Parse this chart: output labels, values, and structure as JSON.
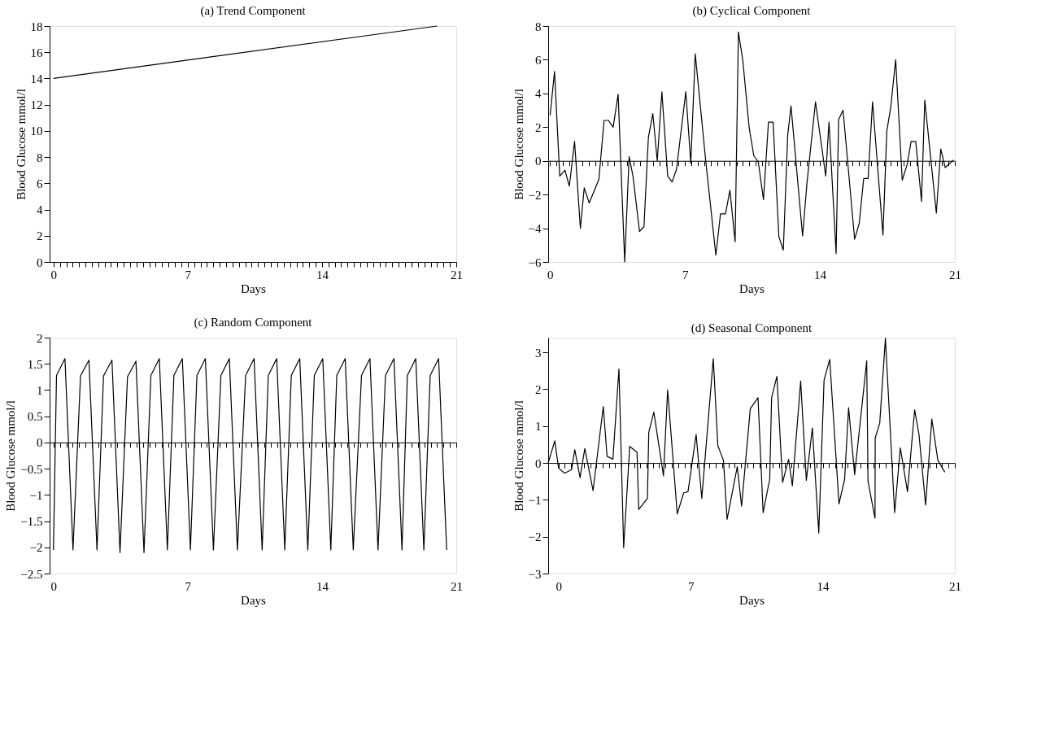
{
  "chart_data": [
    {
      "type": "line",
      "title": "(a) Trend Component",
      "xlabel": "Days",
      "ylabel": "Blood Glucose mmol/l",
      "xlim": [
        -0.2,
        21
      ],
      "ylim": [
        0,
        18
      ],
      "yticks": [
        0,
        2,
        4,
        6,
        8,
        10,
        12,
        14,
        16,
        18
      ],
      "xticks": [
        0,
        {
          "value": 0.33,
          "label": null
        },
        {
          "value": 0.67,
          "label": null
        },
        {
          "value": 1,
          "label": null
        },
        {
          "value": 1.33,
          "label": null
        },
        {
          "value": 1.67,
          "label": null
        },
        {
          "value": 2,
          "label": null
        },
        {
          "value": 2.33,
          "label": null
        },
        {
          "value": 2.67,
          "label": null
        },
        {
          "value": 3,
          "label": null
        },
        {
          "value": 3.33,
          "label": null
        },
        {
          "value": 3.67,
          "label": null
        },
        {
          "value": 4,
          "label": null
        },
        {
          "value": 4.33,
          "label": null
        },
        {
          "value": 4.67,
          "label": null
        },
        {
          "value": 5,
          "label": null
        },
        {
          "value": 5.33,
          "label": null
        },
        {
          "value": 5.67,
          "label": null
        },
        {
          "value": 6,
          "label": null
        },
        {
          "value": 6.33,
          "label": null
        },
        {
          "value": 6.67,
          "label": null
        },
        7,
        {
          "value": 7.33,
          "label": null
        },
        {
          "value": 7.67,
          "label": null
        },
        {
          "value": 8,
          "label": null
        },
        {
          "value": 8.33,
          "label": null
        },
        {
          "value": 8.67,
          "label": null
        },
        {
          "value": 9,
          "label": null
        },
        {
          "value": 9.33,
          "label": null
        },
        {
          "value": 9.67,
          "label": null
        },
        {
          "value": 10,
          "label": null
        },
        {
          "value": 10.33,
          "label": null
        },
        {
          "value": 10.67,
          "label": null
        },
        {
          "value": 11,
          "label": null
        },
        {
          "value": 11.33,
          "label": null
        },
        {
          "value": 11.67,
          "label": null
        },
        {
          "value": 12,
          "label": null
        },
        {
          "value": 12.33,
          "label": null
        },
        {
          "value": 12.67,
          "label": null
        },
        {
          "value": 13,
          "label": null
        },
        {
          "value": 13.33,
          "label": null
        },
        {
          "value": 13.67,
          "label": null
        },
        14,
        {
          "value": 14.33,
          "label": null
        },
        {
          "value": 14.67,
          "label": null
        },
        {
          "value": 15,
          "label": null
        },
        {
          "value": 15.33,
          "label": null
        },
        {
          "value": 15.67,
          "label": null
        },
        {
          "value": 16,
          "label": null
        },
        {
          "value": 16.33,
          "label": null
        },
        {
          "value": 16.67,
          "label": null
        },
        {
          "value": 17,
          "label": null
        },
        {
          "value": 17.33,
          "label": null
        },
        {
          "value": 17.67,
          "label": null
        },
        {
          "value": 18,
          "label": null
        },
        {
          "value": 18.33,
          "label": null
        },
        {
          "value": 18.67,
          "label": null
        },
        {
          "value": 19,
          "label": null
        },
        {
          "value": 19.33,
          "label": null
        },
        {
          "value": 19.67,
          "label": null
        },
        {
          "value": 20,
          "label": null
        },
        {
          "value": 20.33,
          "label": null
        },
        {
          "value": 20.67,
          "label": null
        },
        21
      ],
      "series": [
        {
          "color": "#000000",
          "x": [
            0,
            20
          ],
          "values": [
            14,
            18
          ]
        }
      ]
    },
    {
      "type": "line",
      "title": "(b) Cyclical Component",
      "xlabel": "Days",
      "ylabel": "Blood Glucose mmol/l",
      "xlim": [
        -0.1,
        21
      ],
      "ylim": [
        -6,
        8
      ],
      "yticks": [
        {
          "value": -6,
          "label": "−6"
        },
        {
          "value": -4,
          "label": "−4"
        },
        {
          "value": -2,
          "label": "−2"
        },
        0,
        2,
        4,
        6,
        8
      ],
      "xticks": [
        0,
        {
          "value": 0.33,
          "label": null
        },
        {
          "value": 0.67,
          "label": null
        },
        {
          "value": 1,
          "label": null
        },
        {
          "value": 1.33,
          "label": null
        },
        {
          "value": 1.67,
          "label": null
        },
        {
          "value": 2,
          "label": null
        },
        {
          "value": 2.33,
          "label": null
        },
        {
          "value": 2.67,
          "label": null
        },
        {
          "value": 3,
          "label": null
        },
        {
          "value": 3.33,
          "label": null
        },
        {
          "value": 3.67,
          "label": null
        },
        {
          "value": 4,
          "label": null
        },
        {
          "value": 4.33,
          "label": null
        },
        {
          "value": 4.67,
          "label": null
        },
        {
          "value": 5,
          "label": null
        },
        {
          "value": 5.33,
          "label": null
        },
        {
          "value": 5.67,
          "label": null
        },
        {
          "value": 6,
          "label": null
        },
        {
          "value": 6.33,
          "label": null
        },
        {
          "value": 6.67,
          "label": null
        },
        7,
        {
          "value": 7.33,
          "label": null
        },
        {
          "value": 7.67,
          "label": null
        },
        {
          "value": 8,
          "label": null
        },
        {
          "value": 8.33,
          "label": null
        },
        {
          "value": 8.67,
          "label": null
        },
        {
          "value": 9,
          "label": null
        },
        {
          "value": 9.33,
          "label": null
        },
        {
          "value": 9.67,
          "label": null
        },
        {
          "value": 10,
          "label": null
        },
        {
          "value": 10.33,
          "label": null
        },
        {
          "value": 10.67,
          "label": null
        },
        {
          "value": 11,
          "label": null
        },
        {
          "value": 11.33,
          "label": null
        },
        {
          "value": 11.67,
          "label": null
        },
        {
          "value": 12,
          "label": null
        },
        {
          "value": 12.33,
          "label": null
        },
        {
          "value": 12.67,
          "label": null
        },
        {
          "value": 13,
          "label": null
        },
        {
          "value": 13.33,
          "label": null
        },
        {
          "value": 13.67,
          "label": null
        },
        14,
        {
          "value": 14.33,
          "label": null
        },
        {
          "value": 14.67,
          "label": null
        },
        {
          "value": 15,
          "label": null
        },
        {
          "value": 15.33,
          "label": null
        },
        {
          "value": 15.67,
          "label": null
        },
        {
          "value": 16,
          "label": null
        },
        {
          "value": 16.33,
          "label": null
        },
        {
          "value": 16.67,
          "label": null
        },
        {
          "value": 17,
          "label": null
        },
        {
          "value": 17.33,
          "label": null
        },
        {
          "value": 17.67,
          "label": null
        },
        {
          "value": 18,
          "label": null
        },
        {
          "value": 18.33,
          "label": null
        },
        {
          "value": 18.67,
          "label": null
        },
        {
          "value": 19,
          "label": null
        },
        {
          "value": 19.33,
          "label": null
        },
        {
          "value": 19.67,
          "label": null
        },
        {
          "value": 20,
          "label": null
        },
        {
          "value": 20.33,
          "label": null
        },
        {
          "value": 20.67,
          "label": null
        },
        21
      ],
      "series": [
        {
          "color": "#000000",
          "x": [
            0,
            0.23,
            0.5,
            0.77,
            1.0,
            1.27,
            1.57,
            1.77,
            2.03,
            2.53,
            2.8,
            3.03,
            3.27,
            3.53,
            3.87,
            4.1,
            4.3,
            4.64,
            4.87,
            5.1,
            5.33,
            5.56,
            5.8,
            6.1,
            6.33,
            6.56,
            7.04,
            7.3,
            7.53,
            8.07,
            8.6,
            8.84,
            9.1,
            9.33,
            9.6,
            9.77,
            10.0,
            10.33,
            10.57,
            10.8,
            11.07,
            11.33,
            11.57,
            11.87,
            12.1,
            12.33,
            12.5,
            13.1,
            13.33,
            13.77,
            14.3,
            14.47,
            14.84,
            14.97,
            15.2,
            15.8,
            16.04,
            16.27,
            16.5,
            16.73,
            17.27,
            17.47,
            17.67,
            17.93,
            18.27,
            18.53,
            18.73,
            18.97,
            19.27,
            19.44,
            20.04,
            20.27,
            20.5,
            20.93
          ],
          "values": [
            2.7,
            5.3,
            -0.9,
            -0.55,
            -1.5,
            1.15,
            -4.0,
            -1.6,
            -2.5,
            -1.1,
            2.4,
            2.4,
            2.0,
            3.95,
            -6.0,
            0.25,
            -0.9,
            -4.2,
            -3.9,
            1.4,
            2.8,
            0,
            4.1,
            -0.9,
            -1.25,
            -0.5,
            4.1,
            -0.15,
            6.35,
            0.05,
            -5.6,
            -3.15,
            -3.15,
            -1.75,
            -4.8,
            7.65,
            5.95,
            1.95,
            0.3,
            -0.05,
            -2.3,
            2.3,
            2.3,
            -4.5,
            -5.3,
            1.55,
            3.25,
            -4.45,
            -1.3,
            3.5,
            -0.9,
            2.3,
            -5.5,
            2.45,
            3.0,
            -4.65,
            -3.7,
            -1.05,
            -1.05,
            3.5,
            -4.4,
            1.75,
            3.15,
            6.0,
            -1.15,
            -0.2,
            1.15,
            1.15,
            -2.4,
            3.6,
            -3.1,
            0.7,
            -0.4,
            0.05
          ]
        }
      ]
    },
    {
      "type": "line",
      "title": "(c) Random Component",
      "xlabel": "Days",
      "ylabel": "Blood Glucose mmol/l",
      "xlim": [
        -0.2,
        21
      ],
      "ylim": [
        -2.5,
        2
      ],
      "yticks": [
        {
          "value": -2.5,
          "label": "−2.5"
        },
        {
          "value": -2,
          "label": "−2"
        },
        {
          "value": -1.5,
          "label": "−1.5"
        },
        {
          "value": -1,
          "label": "−1"
        },
        {
          "value": -0.5,
          "label": "−0.5"
        },
        0,
        0.5,
        1,
        1.5,
        2
      ],
      "xticks": [
        0,
        {
          "value": 0.33,
          "label": null
        },
        {
          "value": 0.67,
          "label": null
        },
        {
          "value": 1,
          "label": null
        },
        {
          "value": 1.33,
          "label": null
        },
        {
          "value": 1.67,
          "label": null
        },
        {
          "value": 2,
          "label": null
        },
        {
          "value": 2.33,
          "label": null
        },
        {
          "value": 2.67,
          "label": null
        },
        {
          "value": 3,
          "label": null
        },
        {
          "value": 3.33,
          "label": null
        },
        {
          "value": 3.67,
          "label": null
        },
        {
          "value": 4,
          "label": null
        },
        {
          "value": 4.33,
          "label": null
        },
        {
          "value": 4.67,
          "label": null
        },
        {
          "value": 5,
          "label": null
        },
        {
          "value": 5.33,
          "label": null
        },
        {
          "value": 5.67,
          "label": null
        },
        {
          "value": 6,
          "label": null
        },
        {
          "value": 6.33,
          "label": null
        },
        {
          "value": 6.67,
          "label": null
        },
        7,
        {
          "value": 7.33,
          "label": null
        },
        {
          "value": 7.67,
          "label": null
        },
        {
          "value": 8,
          "label": null
        },
        {
          "value": 8.33,
          "label": null
        },
        {
          "value": 8.67,
          "label": null
        },
        {
          "value": 9,
          "label": null
        },
        {
          "value": 9.33,
          "label": null
        },
        {
          "value": 9.67,
          "label": null
        },
        {
          "value": 10,
          "label": null
        },
        {
          "value": 10.33,
          "label": null
        },
        {
          "value": 10.67,
          "label": null
        },
        {
          "value": 11,
          "label": null
        },
        {
          "value": 11.33,
          "label": null
        },
        {
          "value": 11.67,
          "label": null
        },
        {
          "value": 12,
          "label": null
        },
        {
          "value": 12.33,
          "label": null
        },
        {
          "value": 12.67,
          "label": null
        },
        {
          "value": 13,
          "label": null
        },
        {
          "value": 13.33,
          "label": null
        },
        {
          "value": 13.67,
          "label": null
        },
        14,
        {
          "value": 14.33,
          "label": null
        },
        {
          "value": 14.67,
          "label": null
        },
        {
          "value": 15,
          "label": null
        },
        {
          "value": 15.33,
          "label": null
        },
        {
          "value": 15.67,
          "label": null
        },
        {
          "value": 16,
          "label": null
        },
        {
          "value": 16.33,
          "label": null
        },
        {
          "value": 16.67,
          "label": null
        },
        {
          "value": 17,
          "label": null
        },
        {
          "value": 17.33,
          "label": null
        },
        {
          "value": 17.67,
          "label": null
        },
        {
          "value": 18,
          "label": null
        },
        {
          "value": 18.33,
          "label": null
        },
        {
          "value": 18.67,
          "label": null
        },
        {
          "value": 19,
          "label": null
        },
        {
          "value": 19.33,
          "label": null
        },
        {
          "value": 19.67,
          "label": null
        },
        {
          "value": 20,
          "label": null
        },
        {
          "value": 20.33,
          "label": null
        },
        {
          "value": 20.67,
          "label": null
        },
        21
      ],
      "series": [
        {
          "color": "#000000",
          "x": [
            0,
            0.16,
            0.6,
            1.02,
            1.41,
            1.85,
            2.27,
            2.61,
            3.05,
            3.47,
            3.86,
            4.3,
            4.72,
            5.08,
            5.52,
            5.94,
            6.28,
            6.72,
            7.14,
            7.48,
            7.92,
            8.34,
            8.73,
            9.17,
            9.59,
            10.02,
            10.46,
            10.88,
            11.2,
            11.64,
            12.06,
            12.4,
            12.84,
            13.26,
            13.6,
            14.04,
            14.46,
            14.77,
            15.21,
            15.63,
            16.06,
            16.5,
            16.92,
            17.31,
            17.75,
            18.17,
            18.45,
            18.89,
            19.31,
            19.64,
            20.08,
            20.5
          ],
          "values": [
            -2.05,
            1.28,
            1.6,
            -2.05,
            1.27,
            1.57,
            -2.05,
            1.27,
            1.57,
            -2.1,
            1.25,
            1.55,
            -2.1,
            1.28,
            1.6,
            -2.05,
            1.28,
            1.6,
            -2.05,
            1.28,
            1.6,
            -2.05,
            1.28,
            1.6,
            -2.05,
            1.28,
            1.6,
            -2.05,
            1.28,
            1.6,
            -2.05,
            1.28,
            1.6,
            -2.05,
            1.28,
            1.6,
            -2.05,
            1.28,
            1.6,
            -2.05,
            1.28,
            1.6,
            -2.05,
            1.28,
            1.6,
            -2.05,
            1.28,
            1.6,
            -2.05,
            1.28,
            1.6,
            -2.05
          ]
        }
      ]
    },
    {
      "type": "line",
      "title": "(d) Seasonal Component",
      "xlabel": "Days",
      "ylabel": "Blood Glucose mmol/l",
      "xlim": [
        -0.55,
        21
      ],
      "ylim": [
        -3,
        3.4
      ],
      "yticks": [
        {
          "value": -3,
          "label": "−3"
        },
        {
          "value": -2,
          "label": "−2"
        },
        {
          "value": -1,
          "label": "−1"
        },
        0,
        1,
        2,
        3
      ],
      "xticks": [
        0,
        {
          "value": 0.33,
          "label": null
        },
        {
          "value": 0.67,
          "label": null
        },
        {
          "value": 1,
          "label": null
        },
        {
          "value": 1.33,
          "label": null
        },
        {
          "value": 1.67,
          "label": null
        },
        {
          "value": 2,
          "label": null
        },
        {
          "value": 2.33,
          "label": null
        },
        {
          "value": 2.67,
          "label": null
        },
        {
          "value": 3,
          "label": null
        },
        {
          "value": 3.33,
          "label": null
        },
        {
          "value": 3.67,
          "label": null
        },
        {
          "value": 4,
          "label": null
        },
        {
          "value": 4.33,
          "label": null
        },
        {
          "value": 4.67,
          "label": null
        },
        {
          "value": 5,
          "label": null
        },
        {
          "value": 5.33,
          "label": null
        },
        {
          "value": 5.67,
          "label": null
        },
        {
          "value": 6,
          "label": null
        },
        {
          "value": 6.33,
          "label": null
        },
        {
          "value": 6.67,
          "label": null
        },
        7,
        {
          "value": 7.33,
          "label": null
        },
        {
          "value": 7.67,
          "label": null
        },
        {
          "value": 8,
          "label": null
        },
        {
          "value": 8.33,
          "label": null
        },
        {
          "value": 8.67,
          "label": null
        },
        {
          "value": 9,
          "label": null
        },
        {
          "value": 9.33,
          "label": null
        },
        {
          "value": 9.67,
          "label": null
        },
        {
          "value": 10,
          "label": null
        },
        {
          "value": 10.33,
          "label": null
        },
        {
          "value": 10.67,
          "label": null
        },
        {
          "value": 11,
          "label": null
        },
        {
          "value": 11.33,
          "label": null
        },
        {
          "value": 11.67,
          "label": null
        },
        {
          "value": 12,
          "label": null
        },
        {
          "value": 12.33,
          "label": null
        },
        {
          "value": 12.67,
          "label": null
        },
        {
          "value": 13,
          "label": null
        },
        {
          "value": 13.33,
          "label": null
        },
        {
          "value": 13.67,
          "label": null
        },
        14,
        {
          "value": 14.33,
          "label": null
        },
        {
          "value": 14.67,
          "label": null
        },
        {
          "value": 15,
          "label": null
        },
        {
          "value": 15.33,
          "label": null
        },
        {
          "value": 15.67,
          "label": null
        },
        {
          "value": 16,
          "label": null
        },
        {
          "value": 16.33,
          "label": null
        },
        {
          "value": 16.67,
          "label": null
        },
        {
          "value": 17,
          "label": null
        },
        {
          "value": 17.33,
          "label": null
        },
        {
          "value": 17.67,
          "label": null
        },
        {
          "value": 18,
          "label": null
        },
        {
          "value": 18.33,
          "label": null
        },
        {
          "value": 18.67,
          "label": null
        },
        {
          "value": 19,
          "label": null
        },
        {
          "value": 19.33,
          "label": null
        },
        {
          "value": 19.67,
          "label": null
        },
        {
          "value": 20,
          "label": null
        },
        {
          "value": 20.33,
          "label": null
        },
        {
          "value": 20.67,
          "label": null
        },
        21
      ],
      "series": [
        {
          "color": "#000000",
          "x": [
            -0.55,
            -0.2,
            0,
            0.32,
            0.69,
            0.86,
            1.14,
            1.39,
            1.83,
            2.37,
            2.57,
            2.88,
            3.2,
            3.45,
            3.77,
            4.16,
            4.25,
            4.71,
            4.78,
            5.05,
            5.56,
            5.78,
            6.29,
            6.63,
            6.86,
            7.29,
            7.59,
            8.2,
            8.44,
            8.74,
            8.93,
            9.47,
            9.7,
            10.16,
            10.57,
            10.84,
            11.19,
            11.29,
            11.57,
            11.87,
            12.19,
            12.39,
            12.83,
            13.13,
            13.45,
            13.79,
            14.07,
            14.37,
            14.86,
            15.16,
            15.37,
            15.69,
            16.33,
            16.4,
            16.77,
            16.78,
            17.02,
            17.32,
            17.81,
            18.11,
            18.49,
            18.87,
            19.1,
            19.45,
            19.78,
            20.1,
            20.47
          ],
          "values": [
            0,
            0.6,
            -0.14,
            -0.28,
            -0.18,
            0.36,
            -0.4,
            0.39,
            -0.75,
            1.53,
            0.18,
            0.1,
            2.55,
            -2.3,
            0.45,
            0.29,
            -1.26,
            -0.96,
            0.83,
            1.38,
            -0.35,
            1.98,
            -1.38,
            -0.81,
            -0.78,
            0.77,
            -0.96,
            2.83,
            0.47,
            0.07,
            -1.53,
            -0.1,
            -1.17,
            1.47,
            1.77,
            -1.35,
            -0.44,
            1.77,
            2.35,
            -0.53,
            0.1,
            -0.62,
            2.22,
            -0.47,
            0.95,
            -1.9,
            2.25,
            2.81,
            -1.11,
            -0.44,
            1.5,
            -0.32,
            2.77,
            -0.5,
            -1.5,
            0.68,
            1.08,
            3.38,
            -1.35,
            0.41,
            -0.78,
            1.44,
            0.77,
            -1.14,
            1.19,
            0.07,
            -0.25
          ]
        }
      ]
    }
  ]
}
